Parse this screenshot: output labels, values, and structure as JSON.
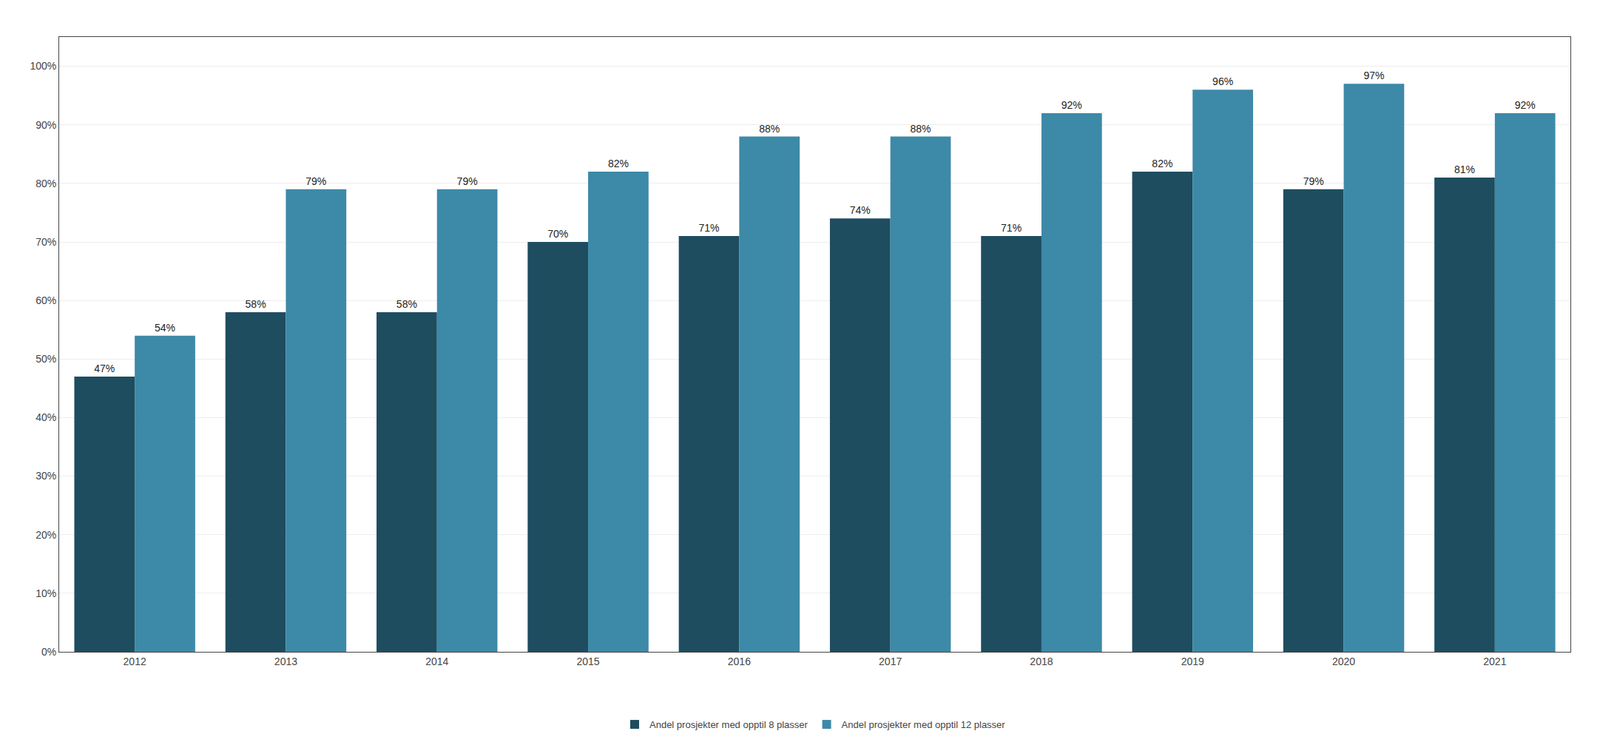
{
  "chart_data": {
    "type": "bar",
    "categories": [
      "2012",
      "2013",
      "2014",
      "2015",
      "2016",
      "2017",
      "2018",
      "2019",
      "2020",
      "2021"
    ],
    "series": [
      {
        "name": "Andel prosjekter med opptil 8 plasser",
        "color": "#1e4d60",
        "values": [
          47,
          58,
          58,
          70,
          71,
          74,
          71,
          82,
          79,
          81
        ],
        "value_labels": [
          "47%",
          "58%",
          "58%",
          "70%",
          "71%",
          "74%",
          "71%",
          "82%",
          "79%",
          "81%"
        ]
      },
      {
        "name": "Andel prosjekter med opptil 12 plasser",
        "color": "#3d89a8",
        "values": [
          54,
          79,
          79,
          82,
          88,
          88,
          92,
          96,
          97,
          92
        ],
        "value_labels": [
          "54%",
          "79%",
          "79%",
          "82%",
          "88%",
          "88%",
          "92%",
          "96%",
          "97%",
          "92%"
        ]
      }
    ],
    "ylim": [
      0,
      105
    ],
    "yticks": [
      {
        "value": 0,
        "label": "0%"
      },
      {
        "value": 10,
        "label": "10%"
      },
      {
        "value": 20,
        "label": "20%"
      },
      {
        "value": 30,
        "label": "30%"
      },
      {
        "value": 40,
        "label": "40%"
      },
      {
        "value": 50,
        "label": "50%"
      },
      {
        "value": 60,
        "label": "60%"
      },
      {
        "value": 70,
        "label": "70%"
      },
      {
        "value": 80,
        "label": "80%"
      },
      {
        "value": 90,
        "label": "90%"
      },
      {
        "value": 100,
        "label": "100%"
      }
    ],
    "grid": true,
    "legend": "bottom",
    "data_labels": true
  }
}
